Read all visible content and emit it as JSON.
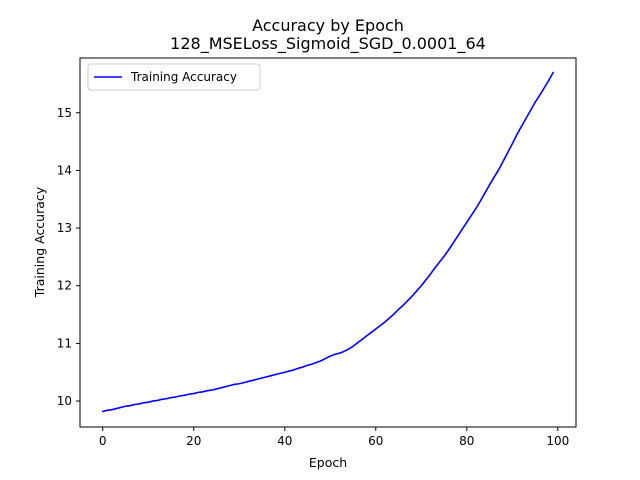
{
  "chart_data": {
    "type": "line",
    "title": "Accuracy by Epoch",
    "subtitle": "128_MSELoss_Sigmoid_SGD_0.0001_64",
    "xlabel": "Epoch",
    "ylabel": "Training Accuracy",
    "xlim": [
      -5,
      104
    ],
    "ylim": [
      9.55,
      15.95
    ],
    "xticks": [
      0,
      20,
      40,
      60,
      80,
      100
    ],
    "yticks": [
      10,
      11,
      12,
      13,
      14,
      15
    ],
    "grid": false,
    "legend": {
      "placement": "upper-left"
    },
    "series": [
      {
        "name": "Training Accuracy",
        "color": "#0000ff",
        "x": [
          0,
          1,
          2,
          3,
          4,
          5,
          6,
          7,
          8,
          9,
          10,
          11,
          12,
          13,
          14,
          15,
          16,
          17,
          18,
          19,
          20,
          21,
          22,
          23,
          24,
          25,
          26,
          27,
          28,
          29,
          30,
          31,
          32,
          33,
          34,
          35,
          36,
          37,
          38,
          39,
          40,
          41,
          42,
          43,
          44,
          45,
          46,
          47,
          48,
          49,
          50,
          51,
          52,
          53,
          54,
          55,
          56,
          57,
          58,
          59,
          60,
          61,
          62,
          63,
          64,
          65,
          66,
          67,
          68,
          69,
          70,
          71,
          72,
          73,
          74,
          75,
          76,
          77,
          78,
          79,
          80,
          81,
          82,
          83,
          84,
          85,
          86,
          87,
          88,
          89,
          90,
          91,
          92,
          93,
          94,
          95,
          96,
          97,
          98,
          99
        ],
        "y": [
          9.82,
          9.84,
          9.85,
          9.87,
          9.89,
          9.91,
          9.92,
          9.94,
          9.95,
          9.97,
          9.98,
          10.0,
          10.01,
          10.03,
          10.04,
          10.06,
          10.07,
          10.09,
          10.1,
          10.12,
          10.13,
          10.15,
          10.16,
          10.18,
          10.19,
          10.21,
          10.23,
          10.25,
          10.27,
          10.29,
          10.3,
          10.32,
          10.34,
          10.36,
          10.38,
          10.4,
          10.42,
          10.44,
          10.46,
          10.48,
          10.5,
          10.52,
          10.54,
          10.57,
          10.59,
          10.62,
          10.64,
          10.67,
          10.7,
          10.74,
          10.78,
          10.81,
          10.83,
          10.86,
          10.9,
          10.95,
          11.01,
          11.07,
          11.13,
          11.19,
          11.25,
          11.31,
          11.37,
          11.44,
          11.51,
          11.59,
          11.66,
          11.74,
          11.82,
          11.91,
          12.0,
          12.1,
          12.2,
          12.31,
          12.41,
          12.51,
          12.62,
          12.74,
          12.86,
          12.98,
          13.1,
          13.22,
          13.34,
          13.47,
          13.61,
          13.75,
          13.88,
          14.01,
          14.16,
          14.31,
          14.46,
          14.62,
          14.76,
          14.9,
          15.04,
          15.18,
          15.3,
          15.43,
          15.56,
          15.7
        ]
      }
    ]
  }
}
